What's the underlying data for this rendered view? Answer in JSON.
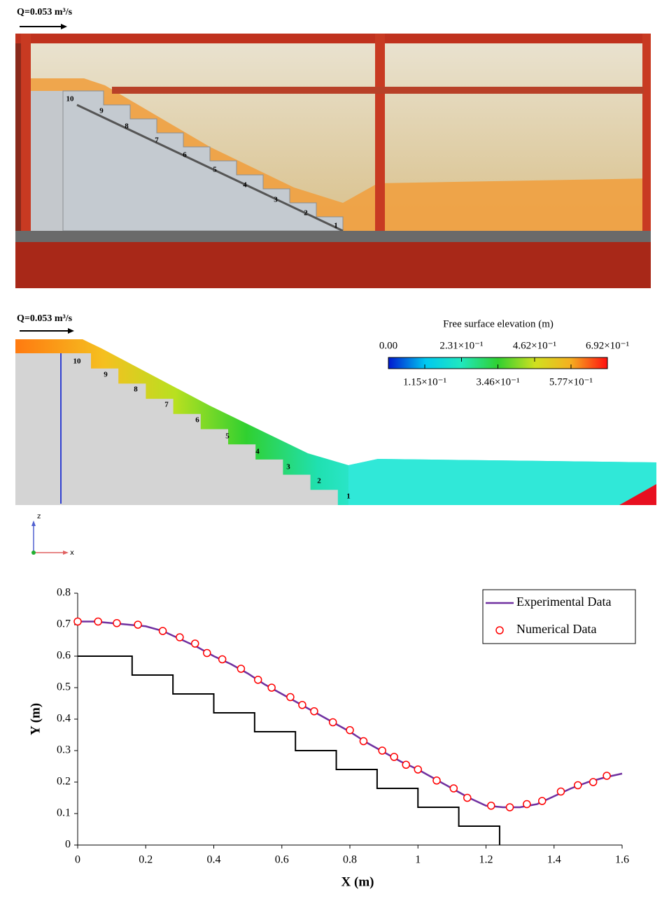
{
  "photo": {
    "flow_label": "Q=0.053 m³/s",
    "step_labels": [
      "1",
      "2",
      "3",
      "4",
      "5",
      "6",
      "7",
      "8",
      "9",
      "10"
    ]
  },
  "simulation": {
    "flow_label": "Q=0.053 m³/s",
    "step_labels": [
      "1",
      "2",
      "3",
      "4",
      "5",
      "6",
      "7",
      "8",
      "9",
      "10"
    ],
    "colorbar": {
      "title": "Free surface elevation (m)",
      "ticks": [
        {
          "value": 0,
          "label": "0.00"
        },
        {
          "value": 0.115,
          "label": "1.15×10⁻¹"
        },
        {
          "value": 0.231,
          "label": "2.31×10⁻¹"
        },
        {
          "value": 0.346,
          "label": "3.46×10⁻¹"
        },
        {
          "value": 0.462,
          "label": "4.62×10⁻¹"
        },
        {
          "value": 0.577,
          "label": "5.77×10⁻¹"
        },
        {
          "value": 0.692,
          "label": "6.92×10⁻¹"
        }
      ]
    },
    "axes": {
      "z": "z",
      "x": "x"
    }
  },
  "chart_data": {
    "type": "line",
    "xlabel": "X (m)",
    "ylabel": "Y (m)",
    "xlim": [
      0,
      1.6
    ],
    "ylim": [
      0,
      0.8
    ],
    "xticks": [
      0,
      0.2,
      0.4,
      0.6,
      0.8,
      1,
      1.2,
      1.4,
      1.6
    ],
    "yticks": [
      0,
      0.1,
      0.2,
      0.3,
      0.4,
      0.5,
      0.6,
      0.7,
      0.8
    ],
    "legend": "upper right",
    "series": [
      {
        "name": "Experimental Data",
        "type": "line",
        "color": "#7030a0",
        "x": [
          0,
          0.05,
          0.1,
          0.15,
          0.2,
          0.25,
          0.3,
          0.35,
          0.4,
          0.45,
          0.5,
          0.55,
          0.6,
          0.65,
          0.7,
          0.75,
          0.8,
          0.85,
          0.9,
          0.95,
          1.0,
          1.05,
          1.1,
          1.15,
          1.2,
          1.25,
          1.3,
          1.35,
          1.4,
          1.45,
          1.5,
          1.55,
          1.6
        ],
        "values": [
          0.71,
          0.71,
          0.705,
          0.7,
          0.695,
          0.68,
          0.655,
          0.63,
          0.6,
          0.575,
          0.545,
          0.51,
          0.48,
          0.45,
          0.42,
          0.39,
          0.36,
          0.325,
          0.295,
          0.265,
          0.24,
          0.21,
          0.18,
          0.15,
          0.125,
          0.12,
          0.12,
          0.13,
          0.155,
          0.18,
          0.2,
          0.215,
          0.227
        ]
      },
      {
        "name": "Numerical Data",
        "type": "scatter",
        "color": "#ff0000",
        "x": [
          0,
          0.06,
          0.115,
          0.177,
          0.25,
          0.3,
          0.345,
          0.38,
          0.425,
          0.48,
          0.53,
          0.57,
          0.625,
          0.66,
          0.695,
          0.75,
          0.8,
          0.84,
          0.895,
          0.93,
          0.965,
          1.0,
          1.055,
          1.105,
          1.145,
          1.215,
          1.27,
          1.32,
          1.365,
          1.42,
          1.47,
          1.515,
          1.555
        ],
        "values": [
          0.71,
          0.71,
          0.705,
          0.7,
          0.68,
          0.66,
          0.64,
          0.61,
          0.59,
          0.56,
          0.525,
          0.5,
          0.47,
          0.445,
          0.425,
          0.39,
          0.365,
          0.33,
          0.3,
          0.28,
          0.255,
          0.24,
          0.205,
          0.18,
          0.15,
          0.125,
          0.12,
          0.13,
          0.14,
          0.17,
          0.19,
          0.2,
          0.22
        ]
      }
    ],
    "profile": {
      "color": "#000000",
      "x": [
        0,
        0.16,
        0.16,
        0.28,
        0.28,
        0.4,
        0.4,
        0.52,
        0.52,
        0.64,
        0.64,
        0.76,
        0.76,
        0.88,
        0.88,
        1.0,
        1.0,
        1.12,
        1.12,
        1.24,
        1.24
      ],
      "values": [
        0.6,
        0.6,
        0.54,
        0.54,
        0.48,
        0.48,
        0.42,
        0.42,
        0.36,
        0.36,
        0.3,
        0.3,
        0.24,
        0.24,
        0.18,
        0.18,
        0.12,
        0.12,
        0.06,
        0.06,
        0
      ]
    }
  }
}
